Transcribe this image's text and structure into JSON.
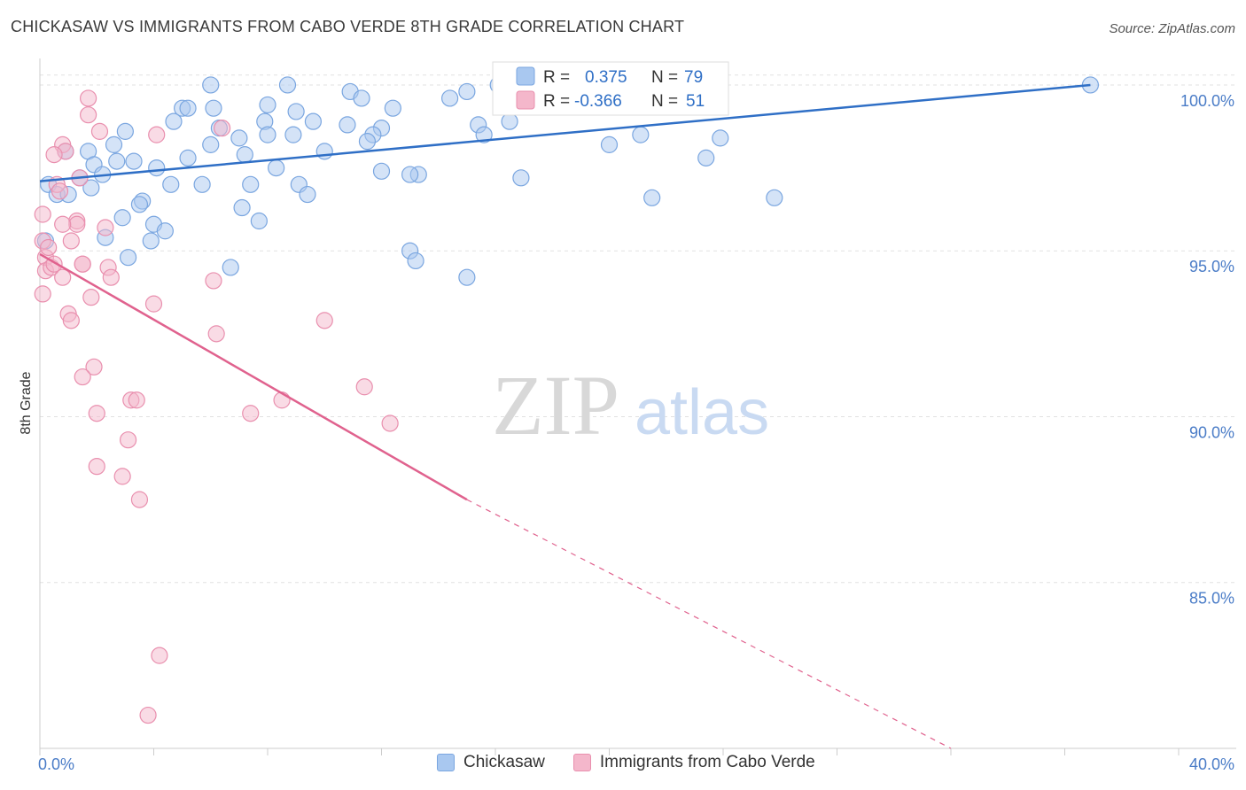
{
  "header": {
    "title": "CHICKASAW VS IMMIGRANTS FROM CABO VERDE 8TH GRADE CORRELATION CHART",
    "source": "Source: ZipAtlas.com"
  },
  "watermark": {
    "zip": "ZIP",
    "atlas": "atlas"
  },
  "colors": {
    "blue_fill": "#a9c8f0",
    "blue_stroke": "#7aa6e0",
    "blue_line": "#2f6fc6",
    "pink_fill": "#f4b7cb",
    "pink_stroke": "#e98fae",
    "pink_line": "#e0628e",
    "axis_text": "#4a7cc7",
    "grid": "#e2e2e2"
  },
  "stats_box": {
    "rows": [
      {
        "r_label": "R =",
        "r_value": "0.375",
        "n_label": "N =",
        "n_value": "79"
      },
      {
        "r_label": "R =",
        "r_value": "-0.366",
        "n_label": "N =",
        "n_value": "51"
      }
    ]
  },
  "legend": {
    "items": [
      "Chickasaw",
      "Immigrants from Cabo Verde"
    ]
  },
  "chart_data": {
    "type": "scatter",
    "title": "CHICKASAW VS IMMIGRANTS FROM CABO VERDE 8TH GRADE CORRELATION CHART",
    "xlabel": "",
    "ylabel": "8th Grade",
    "xlim": [
      0,
      40
    ],
    "ylim": [
      80,
      100.8
    ],
    "x_tick_labels": [
      "0.0%",
      "40.0%"
    ],
    "y_ticks": [
      85,
      90,
      95,
      100
    ],
    "y_tick_labels": [
      "85.0%",
      "90.0%",
      "95.0%",
      "100.0%"
    ],
    "grid": true,
    "legend_position": "bottom-center",
    "series": [
      {
        "name": "Chickasaw",
        "r": 0.375,
        "n": 79,
        "trend": {
          "x": [
            0.0,
            36.9
          ],
          "y": [
            97.1,
            100.0
          ]
        },
        "points": [
          [
            6.0,
            100.0
          ],
          [
            8.7,
            100.0
          ],
          [
            10.9,
            99.8
          ],
          [
            11.3,
            99.6
          ],
          [
            14.4,
            99.6
          ],
          [
            16.1,
            100.0
          ],
          [
            16.9,
            100.0
          ],
          [
            36.9,
            100.0
          ],
          [
            5.0,
            99.3
          ],
          [
            5.2,
            99.3
          ],
          [
            6.1,
            99.3
          ],
          [
            9.0,
            99.2
          ],
          [
            12.4,
            99.3
          ],
          [
            4.7,
            98.9
          ],
          [
            7.9,
            98.9
          ],
          [
            9.6,
            98.9
          ],
          [
            10.8,
            98.8
          ],
          [
            12.0,
            98.7
          ],
          [
            15.4,
            98.8
          ],
          [
            6.3,
            98.7
          ],
          [
            7.0,
            98.4
          ],
          [
            8.0,
            98.5
          ],
          [
            8.9,
            98.5
          ],
          [
            11.7,
            98.5
          ],
          [
            11.5,
            98.3
          ],
          [
            15.6,
            98.5
          ],
          [
            21.1,
            98.5
          ],
          [
            23.9,
            98.4
          ],
          [
            6.0,
            98.2
          ],
          [
            2.6,
            98.2
          ],
          [
            1.7,
            98.0
          ],
          [
            0.9,
            98.0
          ],
          [
            7.2,
            97.9
          ],
          [
            20.0,
            98.2
          ],
          [
            23.4,
            97.8
          ],
          [
            5.2,
            97.8
          ],
          [
            3.3,
            97.7
          ],
          [
            2.7,
            97.7
          ],
          [
            1.9,
            97.6
          ],
          [
            4.1,
            97.5
          ],
          [
            8.3,
            97.5
          ],
          [
            2.2,
            97.3
          ],
          [
            1.4,
            97.2
          ],
          [
            13.3,
            97.3
          ],
          [
            16.9,
            97.2
          ],
          [
            4.6,
            97.0
          ],
          [
            5.7,
            97.0
          ],
          [
            7.4,
            97.0
          ],
          [
            9.1,
            97.0
          ],
          [
            0.3,
            97.0
          ],
          [
            1.8,
            96.9
          ],
          [
            0.6,
            96.7
          ],
          [
            1.0,
            96.7
          ],
          [
            9.4,
            96.7
          ],
          [
            25.8,
            96.6
          ],
          [
            3.6,
            96.5
          ],
          [
            3.5,
            96.4
          ],
          [
            7.1,
            96.3
          ],
          [
            2.9,
            96.0
          ],
          [
            7.7,
            95.9
          ],
          [
            4.0,
            95.8
          ],
          [
            4.4,
            95.6
          ],
          [
            2.3,
            95.4
          ],
          [
            3.9,
            95.3
          ],
          [
            0.2,
            95.3
          ],
          [
            13.0,
            95.0
          ],
          [
            13.2,
            94.7
          ],
          [
            3.1,
            94.8
          ],
          [
            6.7,
            94.5
          ],
          [
            15.0,
            94.2
          ],
          [
            13.0,
            97.3
          ],
          [
            21.5,
            96.6
          ],
          [
            12.0,
            97.4
          ],
          [
            16.5,
            98.9
          ],
          [
            10.0,
            98.0
          ],
          [
            3.0,
            98.6
          ],
          [
            8.0,
            99.4
          ],
          [
            15.0,
            99.8
          ],
          [
            22.0,
            99.6
          ]
        ]
      },
      {
        "name": "Immigrants from Cabo Verde",
        "r": -0.366,
        "n": 51,
        "trend": {
          "x": [
            0.0,
            15.0
          ],
          "y": [
            94.9,
            87.5
          ]
        },
        "trend_extension": {
          "x": [
            15.0,
            32.0
          ],
          "y": [
            87.5,
            80.0
          ]
        },
        "points": [
          [
            1.7,
            99.6
          ],
          [
            1.7,
            99.1
          ],
          [
            2.1,
            98.6
          ],
          [
            6.4,
            98.7
          ],
          [
            4.1,
            98.5
          ],
          [
            0.8,
            98.2
          ],
          [
            0.9,
            98.0
          ],
          [
            0.5,
            97.9
          ],
          [
            1.4,
            97.2
          ],
          [
            0.6,
            97.0
          ],
          [
            0.7,
            96.8
          ],
          [
            0.1,
            96.1
          ],
          [
            1.3,
            95.9
          ],
          [
            1.3,
            95.8
          ],
          [
            0.8,
            95.8
          ],
          [
            2.3,
            95.7
          ],
          [
            0.1,
            95.3
          ],
          [
            1.1,
            95.3
          ],
          [
            0.2,
            94.8
          ],
          [
            1.5,
            94.6
          ],
          [
            0.2,
            94.4
          ],
          [
            0.4,
            94.5
          ],
          [
            0.5,
            94.6
          ],
          [
            2.4,
            94.5
          ],
          [
            0.8,
            94.2
          ],
          [
            2.5,
            94.2
          ],
          [
            6.1,
            94.1
          ],
          [
            0.1,
            93.7
          ],
          [
            1.8,
            93.6
          ],
          [
            4.0,
            93.4
          ],
          [
            1.0,
            93.1
          ],
          [
            1.1,
            92.9
          ],
          [
            10.0,
            92.9
          ],
          [
            6.2,
            92.5
          ],
          [
            1.9,
            91.5
          ],
          [
            1.5,
            91.2
          ],
          [
            11.4,
            90.9
          ],
          [
            3.2,
            90.5
          ],
          [
            3.4,
            90.5
          ],
          [
            8.5,
            90.5
          ],
          [
            2.0,
            90.1
          ],
          [
            7.4,
            90.1
          ],
          [
            12.3,
            89.8
          ],
          [
            3.1,
            89.3
          ],
          [
            2.0,
            88.5
          ],
          [
            2.9,
            88.2
          ],
          [
            3.5,
            87.5
          ],
          [
            4.2,
            82.8
          ],
          [
            3.8,
            81.0
          ],
          [
            0.3,
            95.1
          ],
          [
            1.5,
            94.6
          ]
        ]
      }
    ]
  }
}
